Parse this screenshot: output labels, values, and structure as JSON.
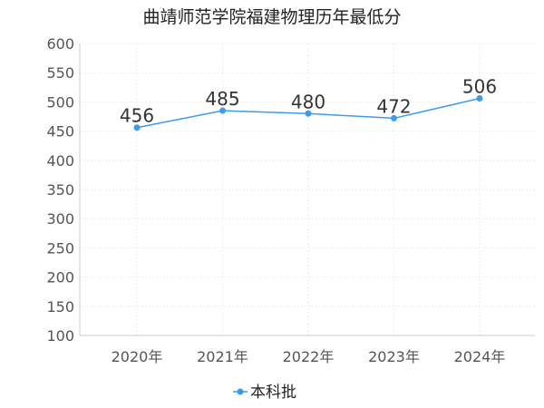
{
  "chart_data": {
    "type": "line",
    "title": "曲靖师范学院福建物理历年最低分",
    "xlabel": "",
    "ylabel": "",
    "categories": [
      "2020年",
      "2021年",
      "2022年",
      "2023年",
      "2024年"
    ],
    "series": [
      {
        "name": "本科批",
        "values": [
          456,
          485,
          480,
          472,
          506
        ]
      }
    ],
    "ylim": [
      100,
      600
    ],
    "yticks": [
      100,
      150,
      200,
      250,
      300,
      350,
      400,
      450,
      500,
      550,
      600
    ],
    "grid": true,
    "legend": "bottom-center",
    "colors": {
      "series": "#3d9be9",
      "grid": "#eeeeee",
      "axis": "#cccccc"
    }
  }
}
